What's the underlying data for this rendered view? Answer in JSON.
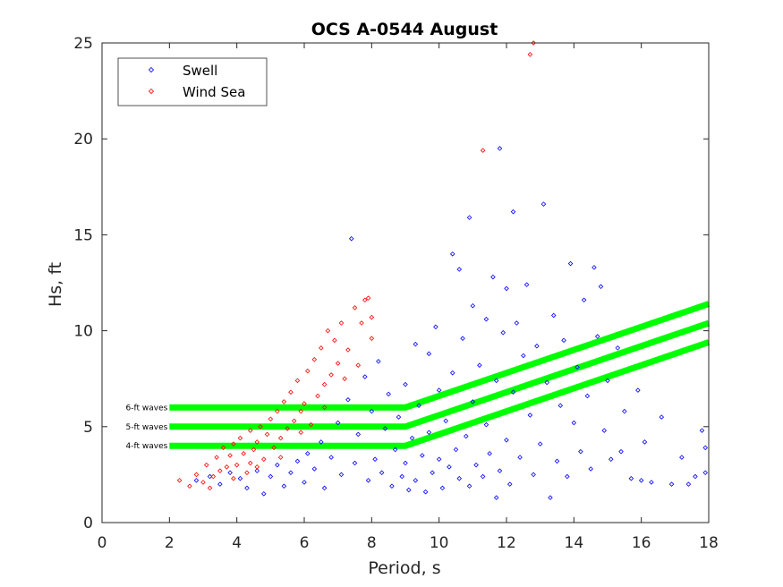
{
  "chart_data": {
    "type": "scatter",
    "title": "OCS A-0544 August",
    "xlabel": "Period, s",
    "ylabel": "Hs, ft",
    "xlim": [
      0,
      18
    ],
    "ylim": [
      0,
      25
    ],
    "xticks": [
      0,
      2,
      4,
      6,
      8,
      10,
      12,
      14,
      16,
      18
    ],
    "yticks": [
      0,
      5,
      10,
      15,
      20,
      25
    ],
    "legend_position": "top-left",
    "series": [
      {
        "name": "Swell",
        "color": "#0000ff",
        "marker": "diamond",
        "points": [
          [
            2.8,
            2.2
          ],
          [
            3.2,
            2.4
          ],
          [
            3.5,
            2.0
          ],
          [
            3.8,
            2.6
          ],
          [
            4.1,
            2.3
          ],
          [
            4.3,
            1.8
          ],
          [
            4.6,
            2.7
          ],
          [
            4.8,
            1.5
          ],
          [
            5.0,
            2.4
          ],
          [
            5.2,
            3.0
          ],
          [
            5.4,
            1.9
          ],
          [
            5.6,
            2.6
          ],
          [
            5.8,
            3.2
          ],
          [
            6.0,
            2.1
          ],
          [
            6.1,
            3.6
          ],
          [
            6.3,
            2.8
          ],
          [
            6.5,
            4.2
          ],
          [
            6.6,
            1.8
          ],
          [
            6.8,
            3.4
          ],
          [
            7.0,
            5.2
          ],
          [
            7.1,
            2.5
          ],
          [
            7.3,
            6.4
          ],
          [
            7.4,
            14.8
          ],
          [
            7.5,
            3.1
          ],
          [
            7.6,
            4.6
          ],
          [
            7.8,
            7.6
          ],
          [
            7.9,
            2.2
          ],
          [
            8.0,
            5.8
          ],
          [
            8.1,
            3.3
          ],
          [
            8.2,
            8.4
          ],
          [
            8.3,
            2.6
          ],
          [
            8.4,
            4.9
          ],
          [
            8.5,
            6.7
          ],
          [
            8.6,
            1.9
          ],
          [
            8.7,
            3.8
          ],
          [
            8.8,
            5.5
          ],
          [
            8.9,
            2.4
          ],
          [
            9.0,
            7.2
          ],
          [
            9.0,
            3.1
          ],
          [
            9.1,
            1.7
          ],
          [
            9.2,
            4.4
          ],
          [
            9.3,
            9.3
          ],
          [
            9.3,
            2.2
          ],
          [
            9.4,
            6.1
          ],
          [
            9.5,
            3.5
          ],
          [
            9.6,
            1.6
          ],
          [
            9.7,
            8.8
          ],
          [
            9.7,
            4.7
          ],
          [
            9.8,
            2.6
          ],
          [
            9.9,
            10.2
          ],
          [
            10.0,
            3.3
          ],
          [
            10.0,
            6.9
          ],
          [
            10.1,
            1.8
          ],
          [
            10.2,
            5.3
          ],
          [
            10.3,
            2.9
          ],
          [
            10.4,
            14.0
          ],
          [
            10.4,
            7.8
          ],
          [
            10.5,
            3.8
          ],
          [
            10.6,
            13.2
          ],
          [
            10.6,
            2.3
          ],
          [
            10.7,
            9.6
          ],
          [
            10.8,
            4.5
          ],
          [
            10.9,
            1.9
          ],
          [
            11.0,
            11.3
          ],
          [
            11.0,
            6.3
          ],
          [
            11.1,
            3.0
          ],
          [
            11.2,
            8.2
          ],
          [
            11.3,
            2.4
          ],
          [
            11.4,
            10.6
          ],
          [
            11.4,
            5.1
          ],
          [
            11.5,
            3.6
          ],
          [
            11.6,
            12.8
          ],
          [
            11.7,
            7.4
          ],
          [
            11.8,
            19.5
          ],
          [
            11.8,
            2.7
          ],
          [
            11.9,
            9.9
          ],
          [
            12.0,
            4.3
          ],
          [
            12.0,
            12.2
          ],
          [
            12.1,
            2.0
          ],
          [
            12.2,
            6.8
          ],
          [
            12.3,
            10.4
          ],
          [
            12.4,
            3.4
          ],
          [
            12.5,
            8.7
          ],
          [
            12.6,
            12.4
          ],
          [
            12.7,
            5.6
          ],
          [
            12.8,
            2.5
          ],
          [
            12.9,
            9.2
          ],
          [
            13.0,
            4.1
          ],
          [
            13.1,
            16.6
          ],
          [
            13.2,
            7.3
          ],
          [
            13.3,
            1.3
          ],
          [
            13.4,
            10.8
          ],
          [
            13.5,
            3.2
          ],
          [
            13.6,
            6.1
          ],
          [
            13.7,
            9.5
          ],
          [
            13.8,
            2.4
          ],
          [
            13.9,
            13.5
          ],
          [
            14.0,
            5.2
          ],
          [
            14.1,
            8.1
          ],
          [
            14.2,
            3.7
          ],
          [
            14.3,
            11.6
          ],
          [
            14.4,
            6.6
          ],
          [
            14.5,
            2.8
          ],
          [
            14.6,
            13.3
          ],
          [
            14.7,
            9.7
          ],
          [
            14.8,
            12.3
          ],
          [
            14.9,
            4.8
          ],
          [
            15.0,
            7.4
          ],
          [
            15.1,
            3.3
          ],
          [
            15.3,
            9.1
          ],
          [
            15.5,
            5.8
          ],
          [
            15.7,
            2.3
          ],
          [
            15.9,
            6.9
          ],
          [
            16.1,
            4.2
          ],
          [
            16.3,
            2.1
          ],
          [
            16.6,
            5.5
          ],
          [
            16.9,
            2.0
          ],
          [
            17.2,
            3.4
          ],
          [
            17.4,
            2.0
          ],
          [
            17.6,
            2.4
          ],
          [
            17.8,
            4.8
          ],
          [
            17.9,
            3.9
          ],
          [
            17.9,
            2.6
          ],
          [
            15.4,
            3.7
          ],
          [
            16.0,
            2.2
          ],
          [
            12.2,
            16.2
          ],
          [
            10.9,
            15.9
          ],
          [
            11.7,
            1.3
          ]
        ]
      },
      {
        "name": "Wind Sea",
        "color": "#ff0000",
        "marker": "diamond",
        "points": [
          [
            2.3,
            2.2
          ],
          [
            2.6,
            1.9
          ],
          [
            2.8,
            2.5
          ],
          [
            3.0,
            2.1
          ],
          [
            3.1,
            3.0
          ],
          [
            3.3,
            2.4
          ],
          [
            3.4,
            3.4
          ],
          [
            3.5,
            2.7
          ],
          [
            3.6,
            3.9
          ],
          [
            3.7,
            2.9
          ],
          [
            3.8,
            3.5
          ],
          [
            3.9,
            4.1
          ],
          [
            4.0,
            3.0
          ],
          [
            4.1,
            4.4
          ],
          [
            4.2,
            3.6
          ],
          [
            4.3,
            2.6
          ],
          [
            4.4,
            4.8
          ],
          [
            4.5,
            3.8
          ],
          [
            4.6,
            4.2
          ],
          [
            4.7,
            5.0
          ],
          [
            4.8,
            3.3
          ],
          [
            4.9,
            4.6
          ],
          [
            5.0,
            5.4
          ],
          [
            5.1,
            3.9
          ],
          [
            5.2,
            5.8
          ],
          [
            5.3,
            4.4
          ],
          [
            5.4,
            6.3
          ],
          [
            5.5,
            4.9
          ],
          [
            5.6,
            6.8
          ],
          [
            5.7,
            5.3
          ],
          [
            5.8,
            7.4
          ],
          [
            5.9,
            5.8
          ],
          [
            6.0,
            6.2
          ],
          [
            6.1,
            7.9
          ],
          [
            6.2,
            5.1
          ],
          [
            6.3,
            8.5
          ],
          [
            6.4,
            6.6
          ],
          [
            6.5,
            9.1
          ],
          [
            6.6,
            7.2
          ],
          [
            6.7,
            10.0
          ],
          [
            6.8,
            7.7
          ],
          [
            6.9,
            9.5
          ],
          [
            7.0,
            8.3
          ],
          [
            7.1,
            10.4
          ],
          [
            7.3,
            9.0
          ],
          [
            7.5,
            11.2
          ],
          [
            7.7,
            10.4
          ],
          [
            7.8,
            11.6
          ],
          [
            7.9,
            11.7
          ],
          [
            8.0,
            10.7
          ],
          [
            8.0,
            9.6
          ],
          [
            7.6,
            8.2
          ],
          [
            7.2,
            7.5
          ],
          [
            6.6,
            6.0
          ],
          [
            5.9,
            4.7
          ],
          [
            5.3,
            3.4
          ],
          [
            4.6,
            2.9
          ],
          [
            3.9,
            2.3
          ],
          [
            3.2,
            1.8
          ],
          [
            4.4,
            3.1
          ],
          [
            12.7,
            24.4
          ],
          [
            12.8,
            25.0
          ],
          [
            11.3,
            19.4
          ]
        ]
      }
    ],
    "reference_lines": [
      {
        "label": "6-ft waves",
        "color": "#00ff00",
        "x": [
          2,
          9,
          18
        ],
        "y": [
          6.0,
          6.0,
          11.4
        ]
      },
      {
        "label": "5-ft waves",
        "color": "#00ff00",
        "x": [
          2,
          9,
          18
        ],
        "y": [
          5.0,
          5.0,
          10.4
        ]
      },
      {
        "label": "4-ft waves",
        "color": "#00ff00",
        "x": [
          2,
          9,
          18
        ],
        "y": [
          4.0,
          4.0,
          9.4
        ]
      }
    ]
  }
}
